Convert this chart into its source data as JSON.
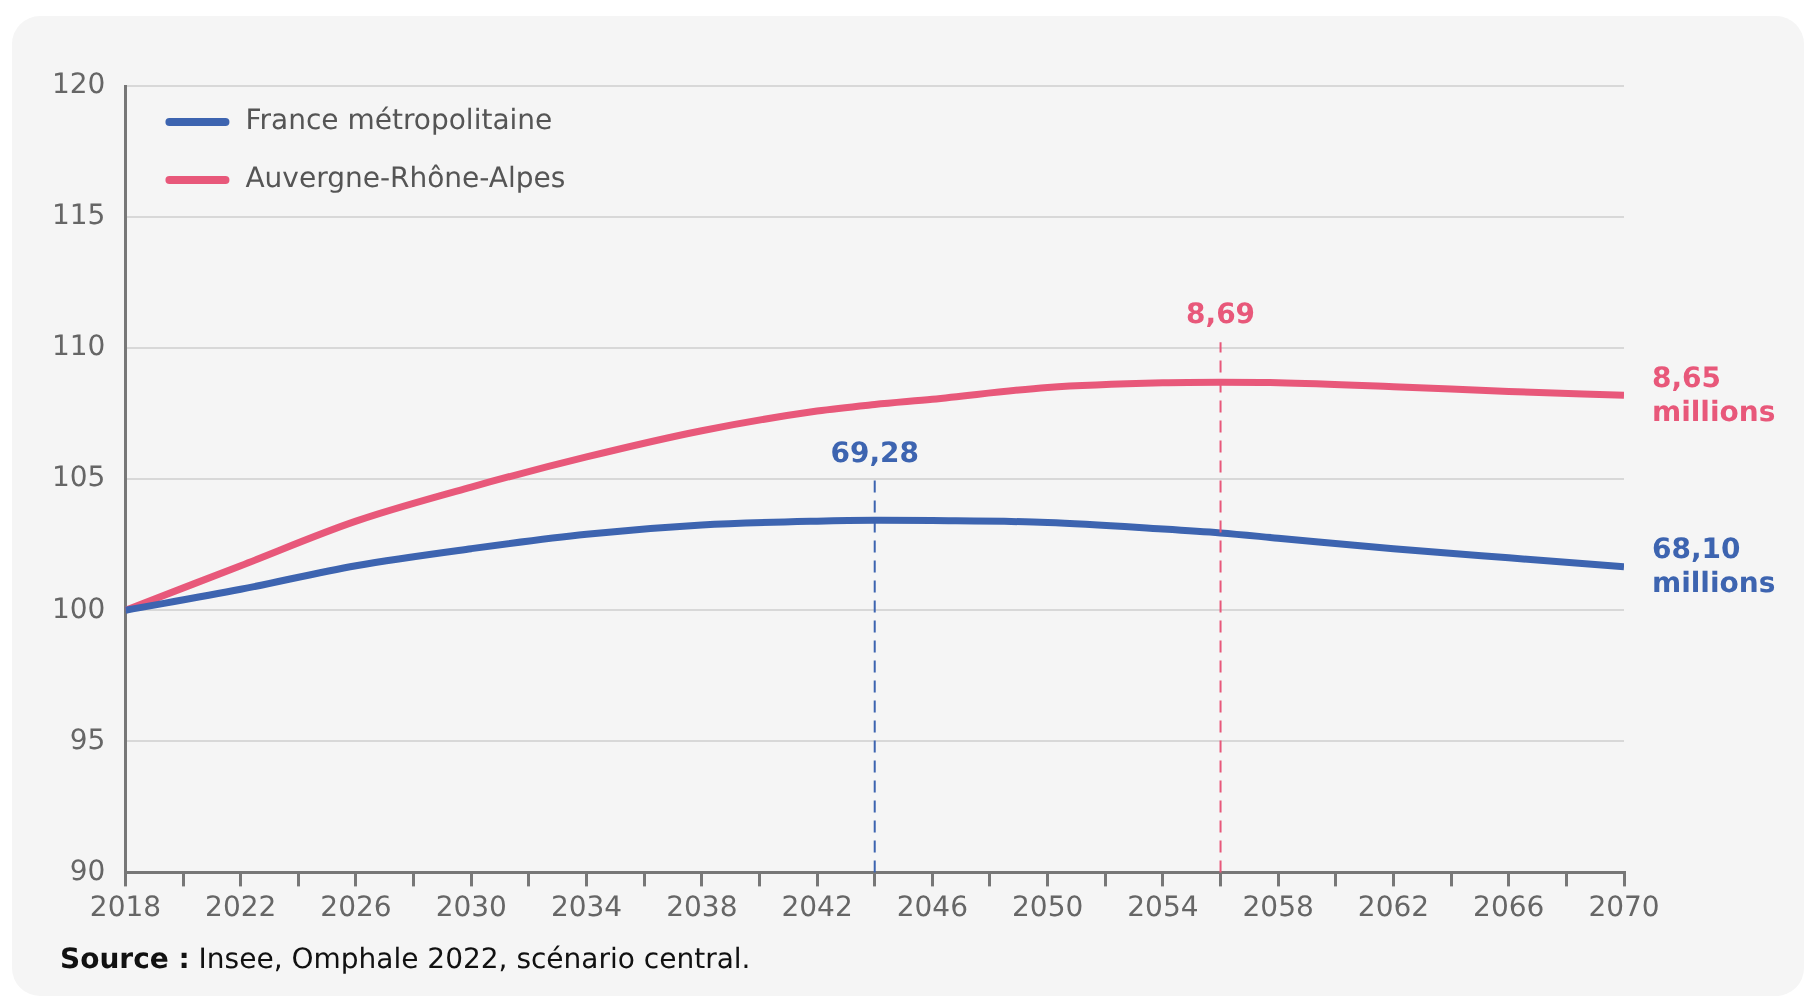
{
  "chart_data": {
    "type": "line",
    "x": [
      2018,
      2022,
      2026,
      2030,
      2034,
      2038,
      2042,
      2044,
      2046,
      2050,
      2054,
      2056,
      2058,
      2062,
      2066,
      2070
    ],
    "series": [
      {
        "name": "France métropolitaine",
        "color": "#3d64b0",
        "values": [
          100,
          100.8,
          101.7,
          102.35,
          102.9,
          103.25,
          103.4,
          103.43,
          103.42,
          103.35,
          103.1,
          102.95,
          102.75,
          102.35,
          102.0,
          101.66
        ]
      },
      {
        "name": "Auvergne-Rhône-Alpes",
        "color": "#e8587a",
        "values": [
          100,
          101.7,
          103.4,
          104.7,
          105.85,
          106.85,
          107.6,
          107.85,
          108.05,
          108.5,
          108.68,
          108.7,
          108.68,
          108.53,
          108.35,
          108.2
        ]
      }
    ],
    "xlim": [
      2018,
      2070
    ],
    "xticks": [
      2018,
      {
        "value": 2020,
        "label": null
      },
      2022,
      {
        "value": 2024,
        "label": null
      },
      2026,
      {
        "value": 2028,
        "label": null
      },
      2030,
      {
        "value": 2032,
        "label": null
      },
      2034,
      {
        "value": 2036,
        "label": null
      },
      2038,
      {
        "value": 2040,
        "label": null
      },
      2042,
      {
        "value": 2044,
        "label": null
      },
      2046,
      {
        "value": 2048,
        "label": null
      },
      2050,
      {
        "value": 2052,
        "label": null
      },
      2054,
      {
        "value": 2056,
        "label": null
      },
      2058,
      {
        "value": 2060,
        "label": null
      },
      2062,
      {
        "value": 2064,
        "label": null
      },
      2066,
      {
        "value": 2068,
        "label": null
      },
      2070
    ],
    "ylim": [
      90,
      120
    ],
    "yticks": [
      90,
      95,
      100,
      105,
      110,
      115,
      120
    ],
    "grid": "y",
    "legend": "top left",
    "marker": "none",
    "line_style": "solid",
    "ref_lines": [
      {
        "axis": "x",
        "value": 2044,
        "color": "#3d64b0",
        "line_style": "dashed"
      },
      {
        "axis": "x",
        "value": 2056,
        "color": "#e8587a",
        "line_style": "dashed"
      }
    ],
    "annotations": [
      {
        "text": "69,28",
        "x": 2044,
        "y": 103.43
      },
      {
        "text": "8,69",
        "x": 2056,
        "y": 108.7
      },
      {
        "text": "8,65 millions",
        "x": 2070,
        "y": 108.2
      },
      {
        "text": "68,10 millions",
        "x": 2070,
        "y": 101.66
      },
      "Source : Insee, Omphale 2022, scénario central."
    ]
  }
}
